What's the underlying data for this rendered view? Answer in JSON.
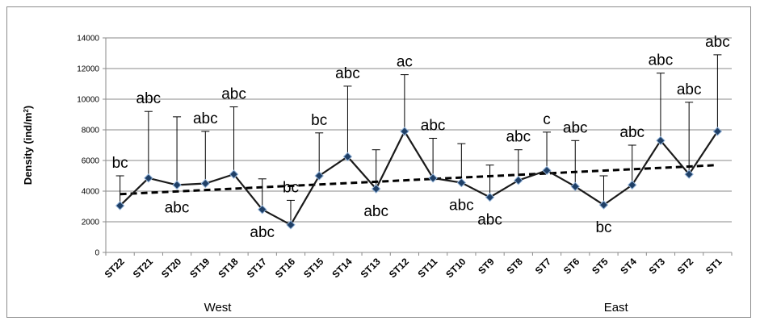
{
  "chart_data": {
    "type": "line",
    "ylabel": "Density (ind/m²)",
    "ylabel_parts": [
      "Density (ind/m",
      "2",
      ")"
    ],
    "ylim": [
      0,
      14000
    ],
    "yticks": [
      "0",
      "2000",
      "4000",
      "6000",
      "8000",
      "10000",
      "12000",
      "14000"
    ],
    "grid": true,
    "categories": [
      "ST22",
      "ST21",
      "ST20",
      "ST19",
      "ST18",
      "ST17",
      "ST16",
      "ST15",
      "ST14",
      "ST13",
      "ST12",
      "ST11",
      "ST10",
      "ST9",
      "ST8",
      "ST7",
      "ST6",
      "ST5",
      "ST4",
      "ST3",
      "ST2",
      "ST1"
    ],
    "series": [
      {
        "values": [
          3050,
          4850,
          4400,
          4500,
          5100,
          2800,
          1800,
          5000,
          6250,
          4150,
          7900,
          4850,
          4550,
          3600,
          4700,
          5350,
          4300,
          3100,
          4400,
          7300,
          5100,
          7900
        ],
        "error_upper": [
          5000,
          9200,
          8850,
          7900,
          9500,
          4800,
          3400,
          7800,
          10850,
          6700,
          11600,
          7450,
          7100,
          5700,
          6700,
          7850,
          7300,
          5000,
          7000,
          11700,
          9800,
          12900
        ],
        "labels": [
          "bc",
          "abc",
          "abc",
          "abc",
          "abc",
          "abc",
          "bc",
          "bc",
          "abc",
          "abc",
          "ac",
          "abc",
          "abc",
          "abc",
          "abc",
          "c",
          "abc",
          "bc",
          "abc",
          "abc",
          "abc",
          "abc"
        ],
        "label_pos": [
          "above",
          "above",
          "below",
          "above",
          "above",
          "below",
          "above",
          "above",
          "above",
          "below",
          "above",
          "above",
          "below",
          "below",
          "above",
          "above",
          "above",
          "below",
          "above",
          "above",
          "above",
          "above"
        ],
        "color": "#1a1a1a",
        "marker_color": "#1f3f66"
      }
    ],
    "trendline": {
      "style": "dashed",
      "start": 3800,
      "end": 5700,
      "color": "#000000"
    },
    "groups": [
      {
        "label": "West",
        "at_category": "ST18"
      },
      {
        "label": "East",
        "at_category": "ST4"
      }
    ]
  }
}
